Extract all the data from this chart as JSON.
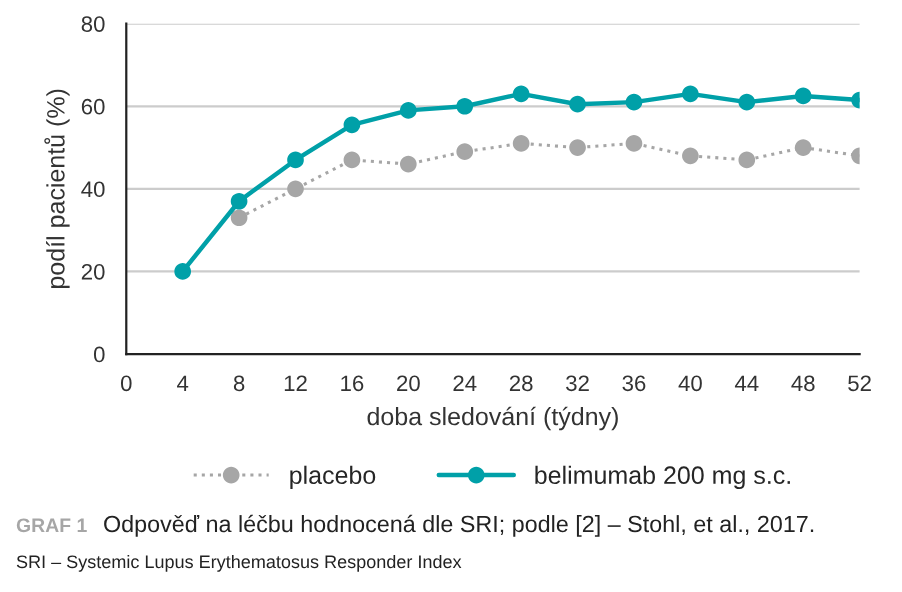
{
  "chart_data": {
    "type": "line",
    "title": "Odpověď na léčbu hodnocená dle SRI; podle [2] – Stohl, et al., 2017.",
    "xlabel": "doba sledování (týdny)",
    "ylabel": "podíl pacientů (%)",
    "x": [
      4,
      8,
      12,
      16,
      20,
      24,
      28,
      32,
      36,
      40,
      44,
      48,
      52
    ],
    "series": [
      {
        "name": "placebo",
        "color": "#a6a6a6",
        "line_style": "dotted",
        "values": [
          null,
          33,
          40,
          47,
          46,
          49,
          51,
          50,
          51,
          48,
          47,
          50,
          48
        ]
      },
      {
        "name": "belimumab 200 mg s.c.",
        "color": "#00a0a8",
        "line_style": "solid",
        "values": [
          20,
          37,
          47,
          55.5,
          59,
          60,
          63,
          60.5,
          61,
          63,
          61,
          62.5,
          61.5
        ]
      }
    ],
    "marker": "circle",
    "xlim": [
      0,
      52
    ],
    "xticks": [
      0,
      4,
      8,
      12,
      16,
      20,
      24,
      28,
      32,
      36,
      40,
      44,
      48,
      52
    ],
    "ylim": [
      0,
      80
    ],
    "yticks": [
      0,
      20,
      40,
      60,
      80
    ],
    "grid": "y",
    "legend": "bottom",
    "annotations": [
      "GRAF 1",
      "SRI – Systemic Lupus Erythematosus Responder Index"
    ]
  }
}
